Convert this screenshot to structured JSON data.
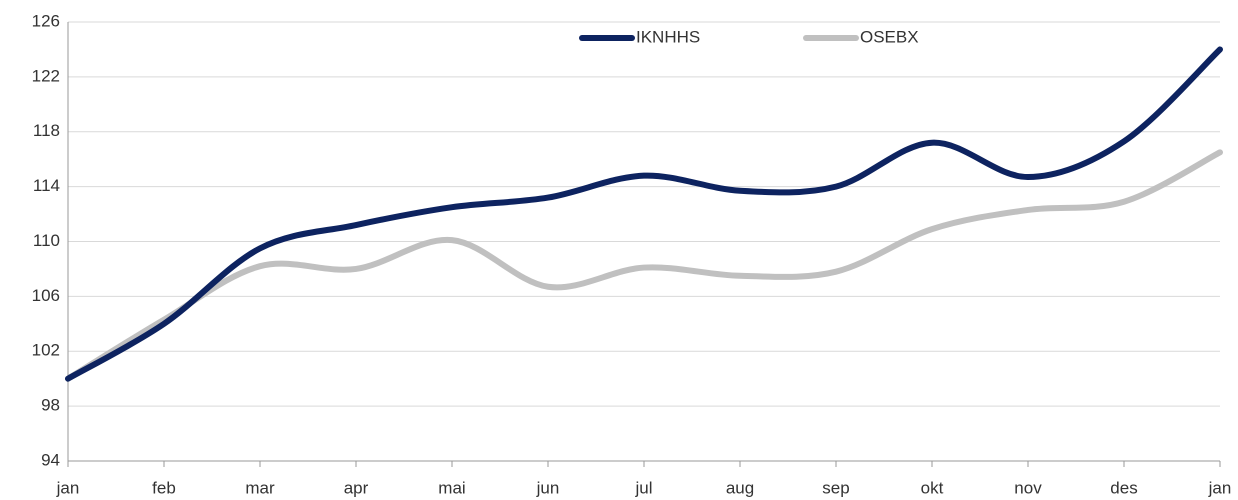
{
  "chart_data": {
    "type": "line",
    "categories": [
      "jan",
      "feb",
      "mar",
      "apr",
      "mai",
      "jun",
      "jul",
      "aug",
      "sep",
      "okt",
      "nov",
      "des",
      "jan"
    ],
    "series": [
      {
        "name": "IKNHHS",
        "color": "#0d2360",
        "values": [
          100,
          104,
          109.5,
          111.2,
          112.5,
          113.2,
          114.8,
          113.7,
          114,
          117.2,
          114.7,
          117.3,
          124
        ]
      },
      {
        "name": "OSEBX",
        "color": "#c0c0c0",
        "values": [
          100,
          104.3,
          108.2,
          108,
          110.1,
          106.7,
          108.1,
          107.5,
          107.8,
          110.9,
          112.3,
          112.9,
          116.5
        ]
      }
    ],
    "ylim": [
      94,
      126
    ],
    "yticks": [
      94,
      98,
      102,
      106,
      110,
      114,
      118,
      122,
      126
    ],
    "grid": true,
    "legend": "top"
  }
}
